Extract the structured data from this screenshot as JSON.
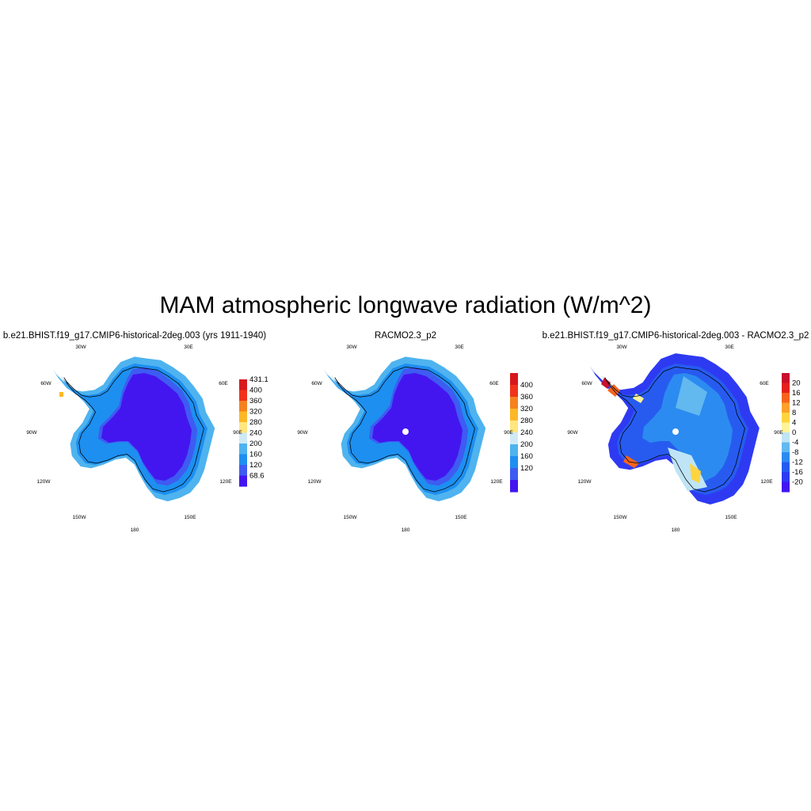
{
  "title": "MAM atmospheric longwave radiation (W/m^2)",
  "panels": [
    {
      "title": "b.e21.BHIST.f19_g17.CMIP6-historical-2deg.003 (yrs 1911-1940)",
      "colorbar": {
        "labels": [
          "431.1",
          "400",
          "360",
          "320",
          "280",
          "240",
          "200",
          "160",
          "120",
          "68.6"
        ],
        "colors": [
          "#d7191c",
          "#f0331a",
          "#f5821f",
          "#fdb827",
          "#ffe680",
          "#cfeaf5",
          "#4eb3ef",
          "#1d8ff0",
          "#3e5bf2",
          "#4316f0"
        ]
      }
    },
    {
      "title": "RACMO2.3_p2",
      "colorbar": {
        "labels": [
          "400",
          "360",
          "320",
          "280",
          "240",
          "200",
          "160",
          "120"
        ],
        "colors": [
          "#d7191c",
          "#f0331a",
          "#f5821f",
          "#fdb827",
          "#ffe680",
          "#cfeaf5",
          "#4eb3ef",
          "#1d8ff0",
          "#3e5bf2",
          "#4316f0"
        ]
      }
    },
    {
      "title": "b.e21.BHIST.f19_g17.CMIP6-historical-2deg.003 - RACMO2.3_p2",
      "colorbar": {
        "labels": [
          "20",
          "16",
          "12",
          "8",
          "4",
          "0",
          "-4",
          "-8",
          "-12",
          "-16",
          "-20"
        ],
        "colors": [
          "#c8102e",
          "#e4201c",
          "#f5641f",
          "#fca12b",
          "#fed43f",
          "#fff39a",
          "#bfe4f5",
          "#61b9ef",
          "#2c8bf0",
          "#275bf0",
          "#2e3af2",
          "#4316f0"
        ]
      }
    }
  ],
  "longitude_labels": [
    "30W",
    "30E",
    "60W",
    "60E",
    "90W",
    "90E",
    "120W",
    "120E",
    "150W",
    "150E",
    "180"
  ]
}
